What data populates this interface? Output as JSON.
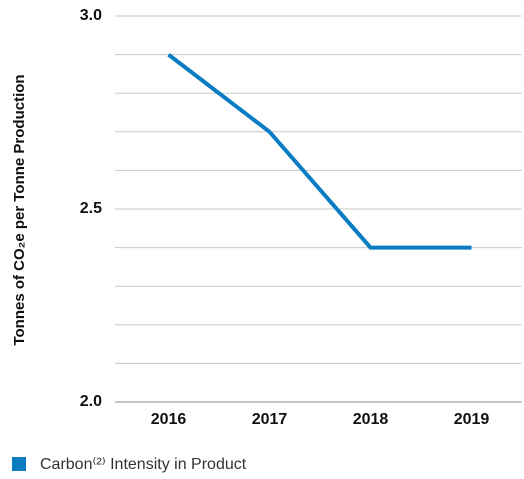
{
  "chart_data": {
    "type": "line",
    "y_label": "Tonnes of CO₂e per Tonne Production",
    "categories": [
      "2016",
      "2017",
      "2018",
      "2019"
    ],
    "series": [
      {
        "name": "Carbon⁽²⁾ Intensity in Product",
        "color": "#0a7cc1",
        "values": [
          2.9,
          2.7,
          2.4,
          2.4
        ]
      }
    ],
    "ylim": [
      2,
      3
    ],
    "yticks": [
      {
        "value": 2,
        "label": "2.0"
      },
      {
        "value": 2.5,
        "label": "2.5"
      },
      {
        "value": 3,
        "label": "3.0"
      }
    ],
    "minor_yticks": [
      2.1,
      2.2,
      2.3,
      2.4,
      2.6,
      2.7,
      2.8,
      2.9
    ],
    "grid": true
  }
}
